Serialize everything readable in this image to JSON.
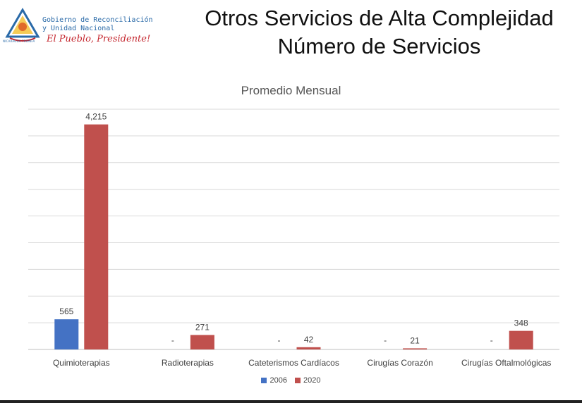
{
  "header": {
    "logo_line1": "Gobierno de Reconciliación",
    "logo_line2": "y Unidad Nacional",
    "logo_slogan": "El Pueblo, Presidente!",
    "logo_caption": "NICARAGUA TRIUNFA",
    "title_line1": "Otros Servicios de Alta Complejidad",
    "title_line2": "Número de Servicios"
  },
  "colors": {
    "series_2006": "#4472c4",
    "series_2020": "#c0504d",
    "gridline": "#d9d9d9",
    "axis": "#bfbfbf"
  },
  "chart_data": {
    "type": "bar",
    "title": "Promedio Mensual",
    "categories": [
      "Quimioterapias",
      "Radioterapias",
      "Cateterismos Cardíacos",
      "Cirugías Corazón",
      "Cirugías Oftalmológicas"
    ],
    "series": [
      {
        "name": "2006",
        "values": [
          565,
          null,
          null,
          null,
          null
        ],
        "labels": [
          "565",
          "-",
          "-",
          "-",
          "-"
        ]
      },
      {
        "name": "2020",
        "values": [
          4215,
          271,
          42,
          21,
          348
        ],
        "labels": [
          "4,215",
          "271",
          "42",
          "21",
          "348"
        ]
      }
    ],
    "ylim": [
      0,
      4500
    ],
    "grid": true,
    "legend": "bottom"
  }
}
